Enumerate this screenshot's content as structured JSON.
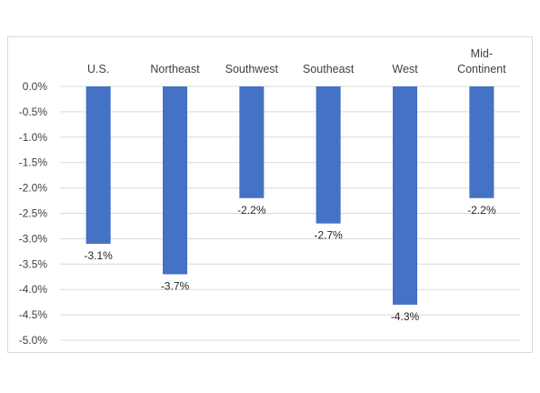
{
  "chart_data": {
    "type": "bar",
    "categories": [
      [
        "U.S."
      ],
      [
        "Northeast"
      ],
      [
        "Southwest"
      ],
      [
        "Southeast"
      ],
      [
        "West"
      ],
      [
        "Mid-",
        "Continent"
      ]
    ],
    "values": [
      -3.1,
      -3.7,
      -2.2,
      -2.7,
      -4.3,
      -2.2
    ],
    "data_labels": [
      "-3.1%",
      "-3.7%",
      "-2.2%",
      "-2.7%",
      "-4.3%",
      "-2.2%"
    ],
    "y_ticks": [
      "0.0%",
      "-0.5%",
      "-1.0%",
      "-1.5%",
      "-2.0%",
      "-2.5%",
      "-3.0%",
      "-3.5%",
      "-4.0%",
      "-4.5%",
      "-5.0%"
    ],
    "ylim": [
      -5.0,
      0.0
    ],
    "grid": true,
    "category_axis_position": "top",
    "title": "",
    "xlabel": "",
    "ylabel": "",
    "bar_color": "#4472c4",
    "grid_color": "#d9d9d9"
  }
}
